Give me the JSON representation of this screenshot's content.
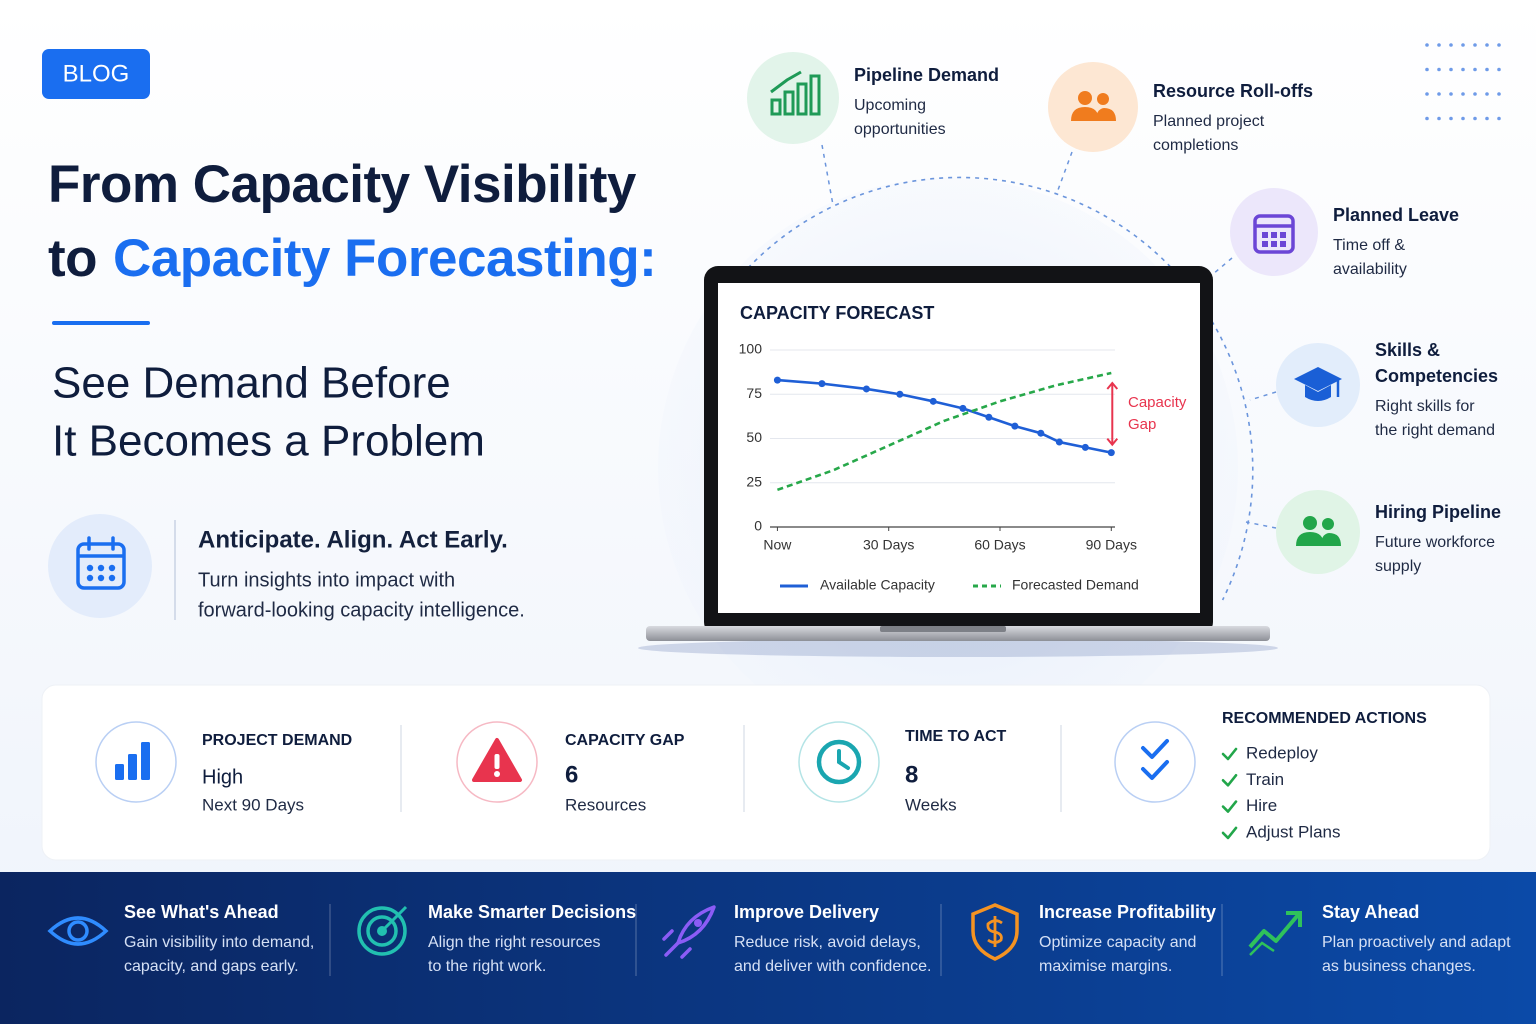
{
  "badge": "BLOG",
  "headline": {
    "line1": "From Capacity Visibility",
    "line2_start": "to",
    "line2_highlight": "Capacity Forecasting:"
  },
  "subtitle": [
    "See Demand Before",
    "It Becomes a Problem"
  ],
  "callout": {
    "title": "Anticipate. Align. Act Early.",
    "body": [
      "Turn insights into impact with",
      "forward-looking capacity intelligence."
    ]
  },
  "factors": [
    {
      "title": [
        "Pipeline Demand"
      ],
      "description": [
        "Upcoming",
        "opportunities"
      ]
    },
    {
      "title": [
        "Resource Roll-offs"
      ],
      "description": [
        "Planned project",
        "completions"
      ]
    },
    {
      "title": [
        "Planned Leave"
      ],
      "description": [
        "Time off &",
        "availability"
      ]
    },
    {
      "title": [
        "Skills &",
        "Competencies"
      ],
      "description": [
        "Right skills for",
        "the right demand"
      ]
    },
    {
      "title": [
        "Hiring Pipeline"
      ],
      "description": [
        "Future workforce",
        "supply"
      ]
    }
  ],
  "chart_data": {
    "type": "line",
    "title": "CAPACITY FORECAST",
    "xlim": [
      -2,
      91
    ],
    "xticks": [
      {
        "value": 0,
        "label": "Now"
      },
      {
        "value": 30,
        "label": "30 Days"
      },
      {
        "value": 60,
        "label": "60 Days"
      },
      {
        "value": 90,
        "label": "90 Days"
      }
    ],
    "ylim": [
      0,
      100
    ],
    "yticks": [
      0,
      25,
      50,
      75,
      100
    ],
    "grid": true,
    "legend": "bottom",
    "series": [
      {
        "name": "Available Capacity",
        "color": "#1f5fd6",
        "markers": true,
        "x": [
          0,
          12,
          24,
          33,
          42,
          50,
          57,
          64,
          71,
          76,
          83,
          90
        ],
        "values": [
          83,
          81,
          78,
          75,
          71,
          67,
          62,
          57,
          53,
          48,
          45,
          42
        ]
      },
      {
        "name": "Forecasted Demand",
        "color": "#27a84a",
        "dashed": true,
        "x": [
          0,
          15,
          30,
          45,
          60,
          75,
          90
        ],
        "values": [
          21,
          32,
          46,
          60,
          71,
          80,
          87
        ]
      }
    ],
    "annotation": {
      "text": "Capacity Gap",
      "color": "#e8344e"
    }
  },
  "stats": [
    {
      "label": "PROJECT DEMAND",
      "value": "High",
      "detail": "Next 90 Days"
    },
    {
      "label": "CAPACITY GAP",
      "value": 6,
      "detail": "Resources"
    },
    {
      "label": "TIME TO ACT",
      "value": 8,
      "detail": "Weeks"
    }
  ],
  "recommended_actions": {
    "label": "RECOMMENDED ACTIONS",
    "items": [
      "Redeploy",
      "Train",
      "Hire",
      "Adjust Plans"
    ]
  },
  "benefits": [
    {
      "title": "See What's Ahead",
      "description": [
        "Gain visibility into demand,",
        "capacity, and gaps early."
      ]
    },
    {
      "title": "Make Smarter Decisions",
      "description": [
        "Align the right resources",
        "to the right work."
      ]
    },
    {
      "title": "Improve Delivery",
      "description": [
        "Reduce risk, avoid delays,",
        "and deliver with confidence."
      ]
    },
    {
      "title": "Increase Profitability",
      "description": [
        "Optimize capacity and",
        "maximise margins."
      ]
    },
    {
      "title": "Stay Ahead",
      "description": [
        "Plan proactively and adapt",
        "as business changes."
      ]
    }
  ]
}
